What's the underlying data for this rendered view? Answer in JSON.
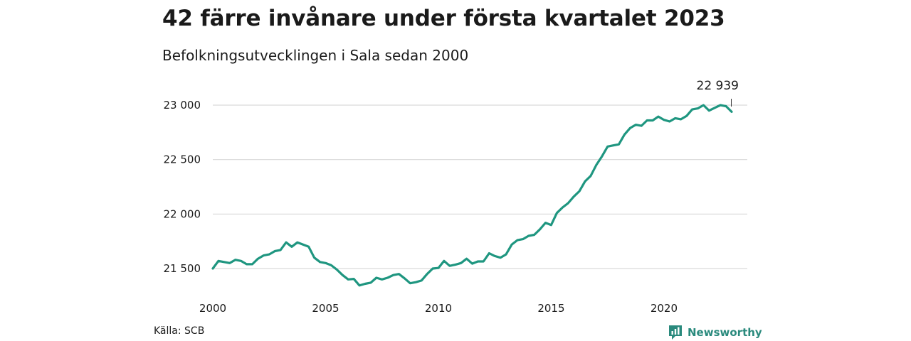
{
  "header": {
    "title": "42 färre invånare under första kvartalet 2023",
    "subtitle": "Befolkningsutvecklingen i Sala sedan 2000"
  },
  "footer": {
    "source": "Källa: SCB",
    "brand": "Newsworthy",
    "brand_icon": "newsworthy-logo-icon"
  },
  "colors": {
    "line": "#1f9680",
    "grid": "#d9d9d9",
    "brand": "#2a8a7d"
  },
  "chart_data": {
    "type": "line",
    "title": "",
    "xlabel": "",
    "ylabel": "",
    "xlim": [
      2000,
      2023
    ],
    "ylim": [
      21300,
      23100
    ],
    "y_ticks": [
      21500,
      22000,
      22500,
      23000
    ],
    "y_tick_labels": [
      "21 500",
      "22 000",
      "22 500",
      "23 000"
    ],
    "x_ticks": [
      2000,
      2005,
      2010,
      2015,
      2020
    ],
    "x_tick_labels": [
      "2000",
      "2005",
      "2010",
      "2015",
      "2020"
    ],
    "grid": "horizontal",
    "annotation": {
      "x": 2023.0,
      "y": 22939,
      "label": "22 939"
    },
    "series": [
      {
        "x": [
          2000.0,
          2000.25,
          2000.5,
          2000.75,
          2001.0,
          2001.25,
          2001.5,
          2001.75,
          2002.0,
          2002.25,
          2002.5,
          2002.75,
          2003.0,
          2003.25,
          2003.5,
          2003.75,
          2004.0,
          2004.25,
          2004.5,
          2004.75,
          2005.0,
          2005.25,
          2005.5,
          2005.75,
          2006.0,
          2006.25,
          2006.5,
          2006.75,
          2007.0,
          2007.25,
          2007.5,
          2007.75,
          2008.0,
          2008.25,
          2008.5,
          2008.75,
          2009.0,
          2009.25,
          2009.5,
          2009.75,
          2010.0,
          2010.25,
          2010.5,
          2010.75,
          2011.0,
          2011.25,
          2011.5,
          2011.75,
          2012.0,
          2012.25,
          2012.5,
          2012.75,
          2013.0,
          2013.25,
          2013.5,
          2013.75,
          2014.0,
          2014.25,
          2014.5,
          2014.75,
          2015.0,
          2015.25,
          2015.5,
          2015.75,
          2016.0,
          2016.25,
          2016.5,
          2016.75,
          2017.0,
          2017.25,
          2017.5,
          2017.75,
          2018.0,
          2018.25,
          2018.5,
          2018.75,
          2019.0,
          2019.25,
          2019.5,
          2019.75,
          2020.0,
          2020.25,
          2020.5,
          2020.75,
          2021.0,
          2021.25,
          2021.5,
          2021.75,
          2022.0,
          2022.25,
          2022.5,
          2022.75,
          2023.0
        ],
        "values": [
          21500,
          21570,
          21560,
          21550,
          21580,
          21570,
          21540,
          21540,
          21590,
          21620,
          21630,
          21660,
          21670,
          21740,
          21700,
          21740,
          21720,
          21700,
          21600,
          21560,
          21550,
          21530,
          21490,
          21440,
          21400,
          21405,
          21345,
          21360,
          21370,
          21415,
          21400,
          21415,
          21440,
          21450,
          21410,
          21365,
          21375,
          21390,
          21450,
          21500,
          21505,
          21570,
          21525,
          21535,
          21550,
          21590,
          21545,
          21565,
          21565,
          21640,
          21615,
          21600,
          21630,
          21720,
          21760,
          21770,
          21800,
          21810,
          21860,
          21920,
          21900,
          22010,
          22060,
          22100,
          22160,
          22210,
          22300,
          22350,
          22450,
          22530,
          22620,
          22630,
          22640,
          22730,
          22790,
          22820,
          22810,
          22860,
          22860,
          22895,
          22865,
          22850,
          22880,
          22870,
          22900,
          22960,
          22970,
          23000,
          22950,
          22975,
          23000,
          22990,
          22939
        ]
      }
    ]
  }
}
